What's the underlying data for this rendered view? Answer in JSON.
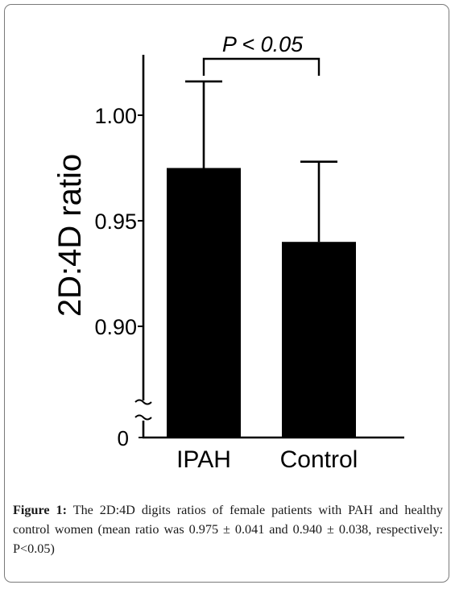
{
  "chart_data": {
    "type": "bar",
    "categories": [
      "IPAH",
      "Control"
    ],
    "values": [
      0.975,
      0.94
    ],
    "errors": [
      0.041,
      0.038
    ],
    "ylabel": "2D:4D ratio",
    "ylim": [
      0.85,
      1.03
    ],
    "yticks": [
      "0.90",
      "0.95",
      "1.00"
    ],
    "y_break_label": "0",
    "significance": "P < 0.05",
    "bar_color": "#000000"
  },
  "caption": {
    "label": "Figure 1:",
    "text": "The 2D:4D digits ratios of female patients with PAH and healthy control women (mean ratio was 0.975 ± 0.041 and 0.940 ± 0.038, respectively: P<0.05)"
  }
}
